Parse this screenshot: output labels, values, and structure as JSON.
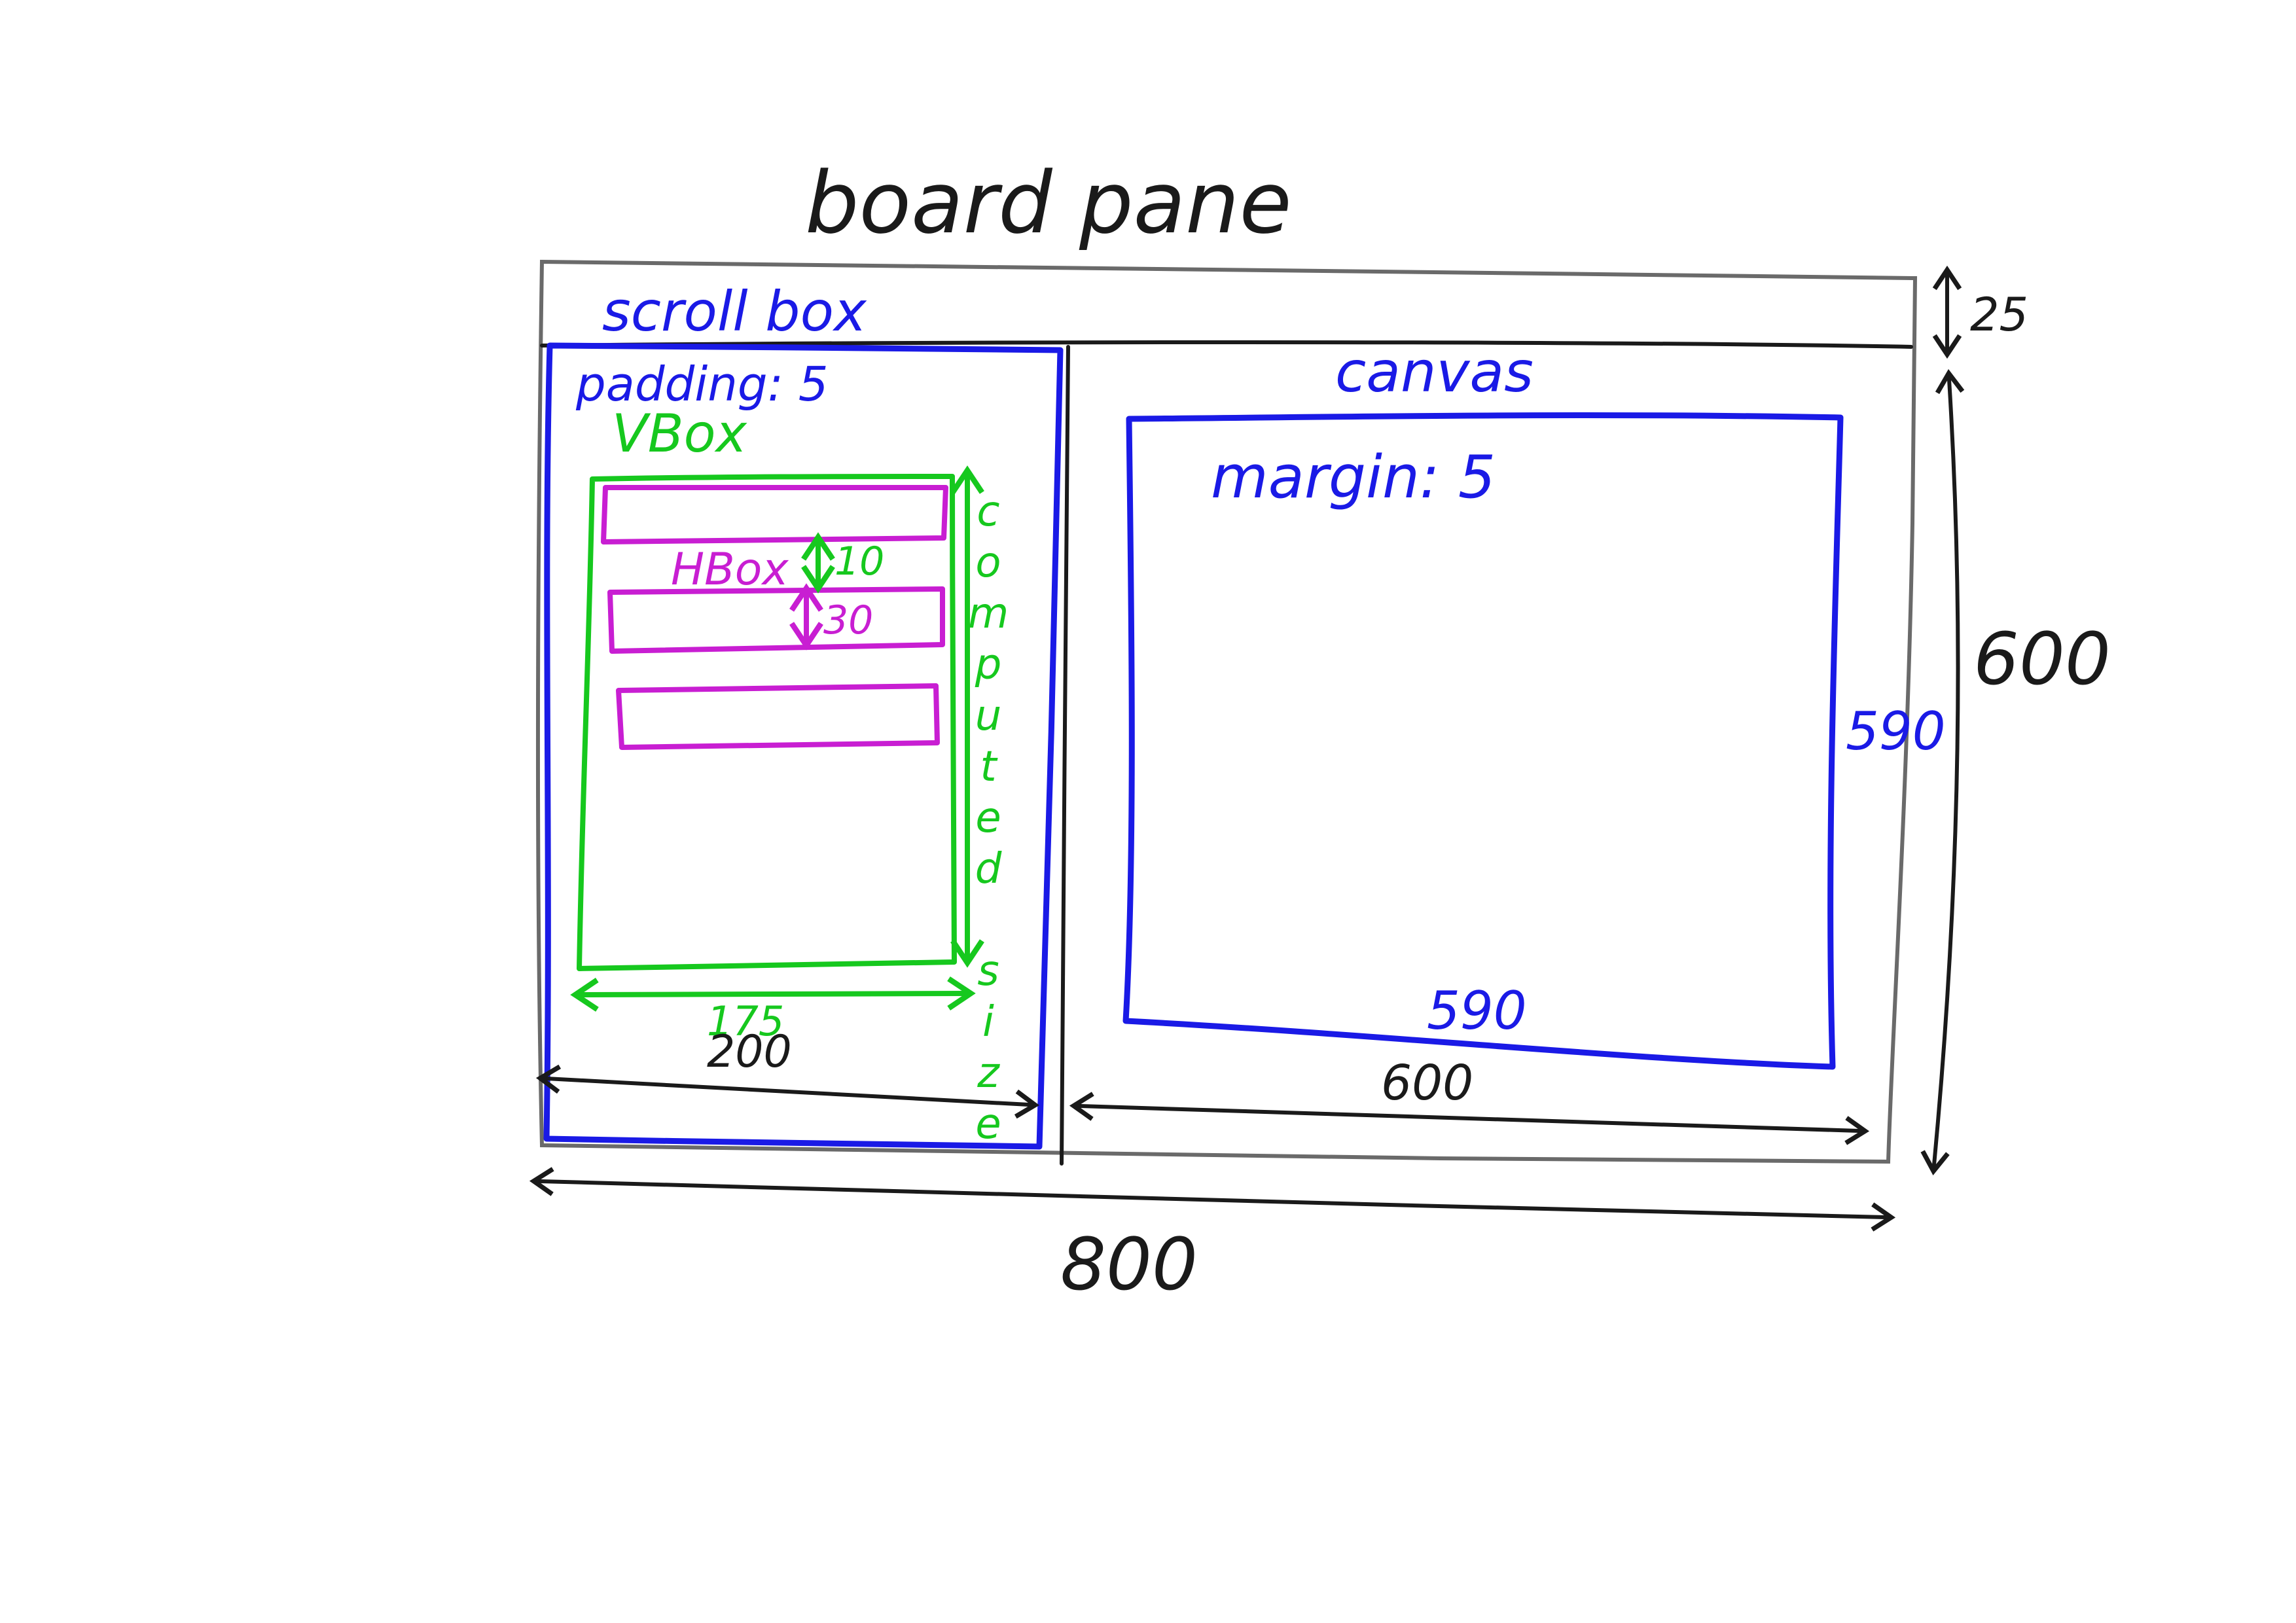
{
  "labels": {
    "board_pane": "board pane",
    "scroll_box": "scroll box",
    "padding": "padding: 5",
    "vbox": "VBox",
    "hbox": "HBox",
    "canvas": "canvas",
    "margin": "margin: 5",
    "computed_size": "computed size"
  },
  "dimensions": {
    "top_bar_height": "25",
    "pane_height": "600",
    "pane_width": "800",
    "scroll_box_width": "200",
    "vbox_width": "175",
    "hbox_gap": "10",
    "hbox_height": "30",
    "canvas_area_width": "600",
    "canvas_width": "590",
    "canvas_height": "590"
  },
  "colors": {
    "outline": "#1a1a1a",
    "scroll_box": "#1a1ae6",
    "vbox": "#16c81e",
    "hbox": "#c81ed2",
    "canvas": "#1a1ae6"
  }
}
